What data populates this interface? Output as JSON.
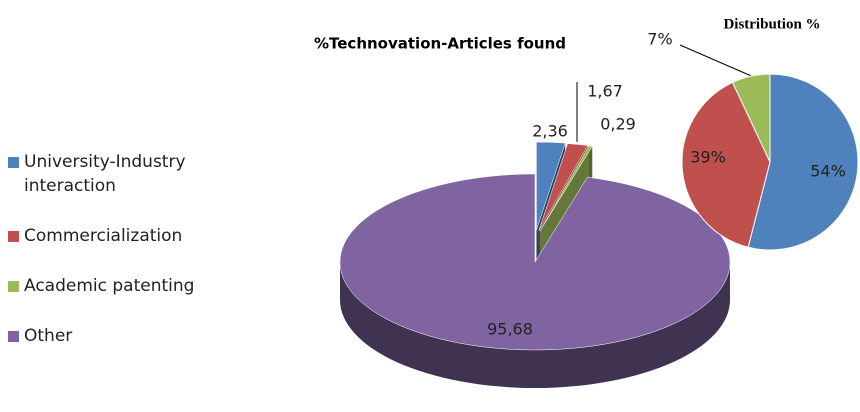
{
  "chart_data": [
    {
      "type": "pie3d",
      "title": "%Technovation-Articles found",
      "categories": [
        "University-Industry interaction",
        "Commercialization",
        "Academic patenting",
        "Other"
      ],
      "values": [
        2.36,
        1.67,
        0.29,
        95.68
      ],
      "value_labels": [
        "2,36",
        "1,67",
        "0,29",
        "95,68"
      ],
      "colors": [
        "#4f81bd",
        "#c0504d",
        "#9bbb59",
        "#8064a2"
      ],
      "legend": "left"
    },
    {
      "type": "pie",
      "title": "Distribution %",
      "values": [
        54,
        39,
        7
      ],
      "value_labels": [
        "54%",
        "39%",
        "7%"
      ],
      "colors": [
        "#4f81bd",
        "#c0504d",
        "#9bbb59"
      ]
    }
  ]
}
